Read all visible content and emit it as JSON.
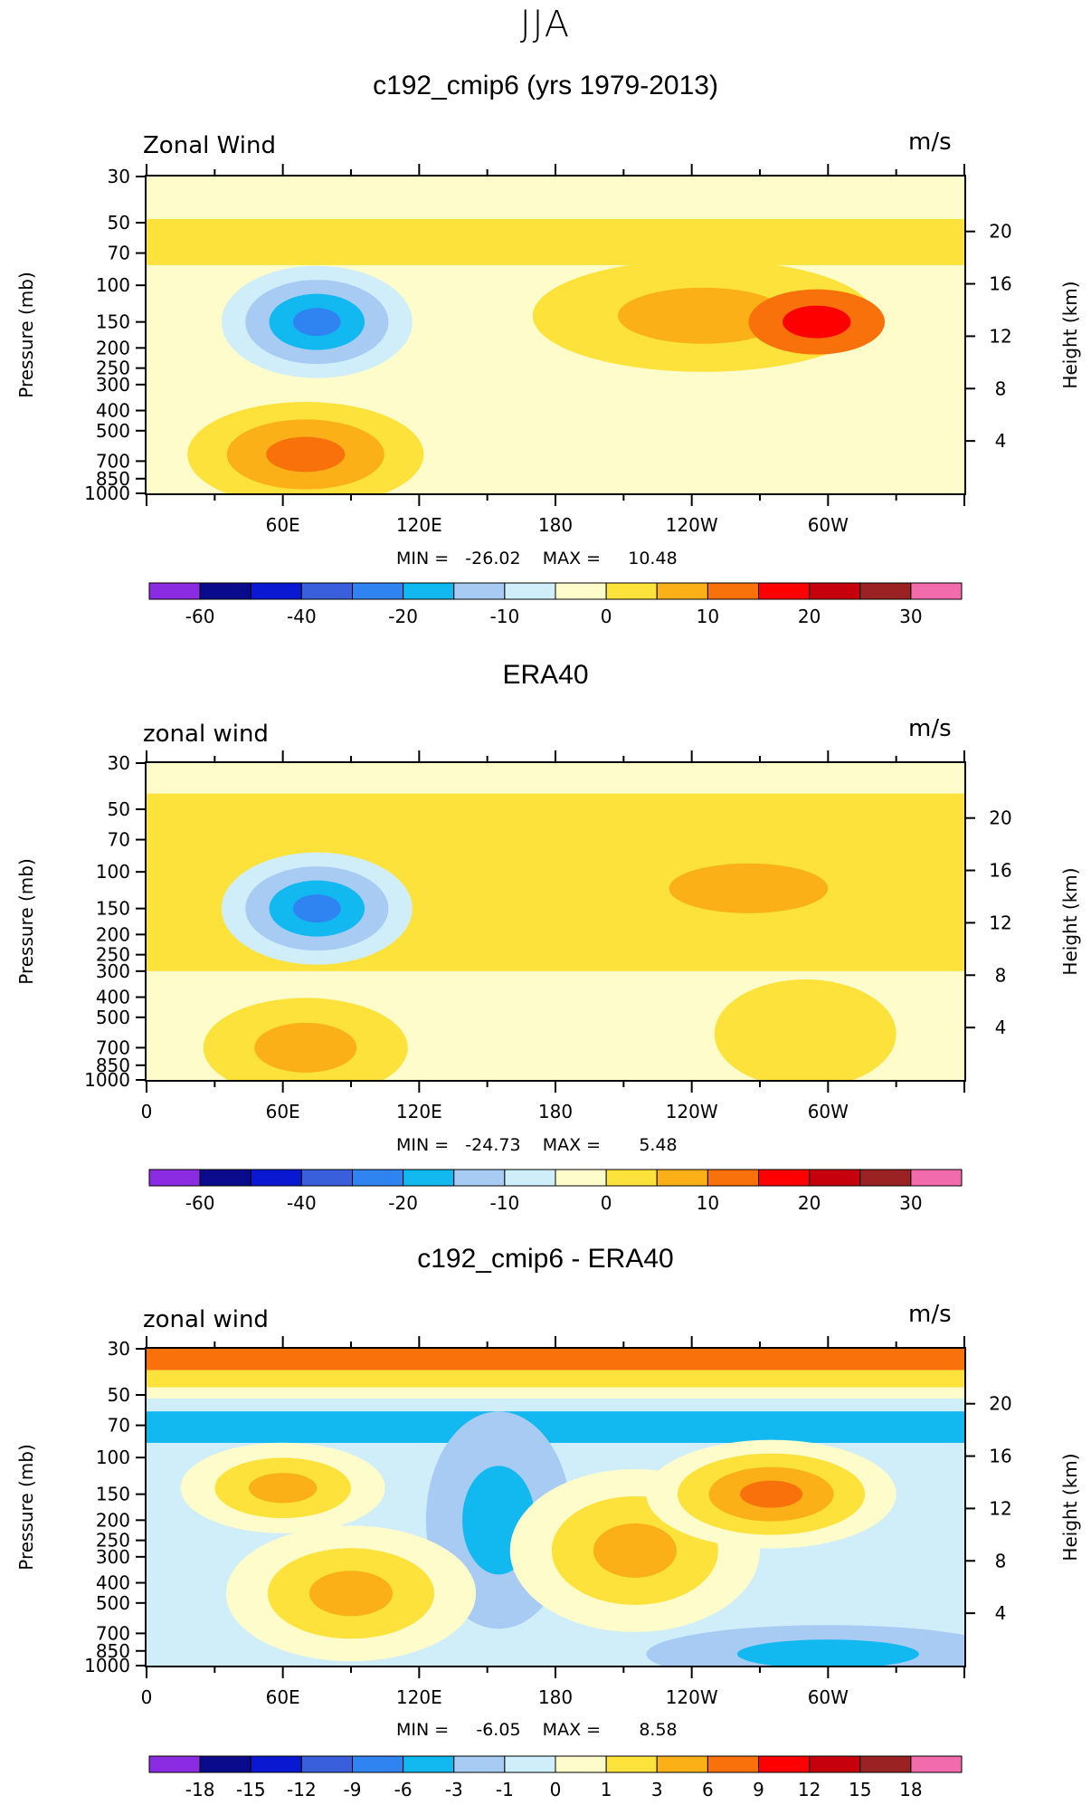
{
  "page_title": "JJA",
  "colors": {
    "palette": [
      "#8b2be2",
      "#0a0a8c",
      "#0b18d2",
      "#3a5fdc",
      "#2f84f2",
      "#12b8f0",
      "#a8cbf4",
      "#cfeefa",
      "#fffccb",
      "#fde23b",
      "#fbb018",
      "#f8710a",
      "#ff0000",
      "#c7000d",
      "#9a2222",
      "#f26bad"
    ]
  },
  "chart_data": [
    {
      "type": "heatmap",
      "title": "c192_cmip6 (yrs 1979-2013)",
      "variable_label": "Zonal Wind",
      "units": "m/s",
      "ylabel": "Pressure (mb)",
      "y2label": "Height (km)",
      "x_ticks": [
        "60E",
        "120E",
        "180",
        "120W",
        "60W"
      ],
      "x_ticks_values": [
        60,
        120,
        180,
        240,
        300
      ],
      "xlim": [
        0,
        360
      ],
      "p_ticks": [
        "30",
        "50",
        "70",
        "100",
        "150",
        "200",
        "250",
        "300",
        "400",
        "500",
        "700",
        "850",
        "1000"
      ],
      "p_values": [
        30,
        50,
        70,
        100,
        150,
        200,
        250,
        300,
        400,
        500,
        700,
        850,
        1000
      ],
      "height_ticks": [
        "20",
        "16",
        "12",
        "8",
        "4"
      ],
      "stats": "MIN =   -26.02    MAX =     10.48",
      "min": -26.02,
      "max": 10.48,
      "colorbar": {
        "levels": [
          -70,
          -60,
          -50,
          -40,
          -30,
          -20,
          -15,
          -10,
          -5,
          0,
          5,
          10,
          15,
          20,
          25,
          30,
          35
        ],
        "labels": [
          "-60",
          "-40",
          "-20",
          "-10",
          "0",
          "10",
          "20",
          "30"
        ]
      },
      "features": [
        {
          "lon": 75,
          "p": 150,
          "value": -26.02
        },
        {
          "lon": 70,
          "p": 600,
          "value": 8
        },
        {
          "lon": 300,
          "p": 150,
          "value": 10.48
        },
        {
          "lon": 230,
          "p": 150,
          "value": 4
        },
        {
          "lon": 240,
          "p": 900,
          "value": 1
        }
      ]
    },
    {
      "type": "heatmap",
      "title": "ERA40",
      "variable_label": "zonal wind",
      "units": "m/s",
      "ylabel": "Pressure (mb)",
      "y2label": "Height (km)",
      "x_ticks": [
        "0",
        "60E",
        "120E",
        "180",
        "120W",
        "60W"
      ],
      "x_ticks_values": [
        0,
        60,
        120,
        180,
        240,
        300
      ],
      "xlim": [
        0,
        360
      ],
      "p_ticks": [
        "30",
        "50",
        "70",
        "100",
        "150",
        "200",
        "250",
        "300",
        "400",
        "500",
        "700",
        "850",
        "1000"
      ],
      "p_values": [
        30,
        50,
        70,
        100,
        150,
        200,
        250,
        300,
        400,
        500,
        700,
        850,
        1000
      ],
      "height_ticks": [
        "20",
        "16",
        "12",
        "8",
        "4"
      ],
      "stats": "MIN =   -24.73    MAX =       5.48",
      "min": -24.73,
      "max": 5.48,
      "colorbar": {
        "levels": [
          -70,
          -60,
          -50,
          -40,
          -30,
          -20,
          -15,
          -10,
          -5,
          0,
          5,
          10,
          15,
          20,
          25,
          30,
          35
        ],
        "labels": [
          "-60",
          "-40",
          "-20",
          "-10",
          "0",
          "10",
          "20",
          "30"
        ]
      },
      "features": [
        {
          "lon": 75,
          "p": 150,
          "value": -24.73
        },
        {
          "lon": 70,
          "p": 700,
          "value": 4
        },
        {
          "lon": 270,
          "p": 120,
          "value": 5.48
        },
        {
          "lon": 120,
          "p": 35,
          "value": -6
        }
      ]
    },
    {
      "type": "heatmap",
      "title": "c192_cmip6 - ERA40",
      "variable_label": "zonal wind",
      "units": "m/s",
      "ylabel": "Pressure (mb)",
      "y2label": "Height (km)",
      "x_ticks": [
        "0",
        "60E",
        "120E",
        "180",
        "120W",
        "60W"
      ],
      "x_ticks_values": [
        0,
        60,
        120,
        180,
        240,
        300
      ],
      "xlim": [
        0,
        360
      ],
      "p_ticks": [
        "30",
        "50",
        "70",
        "100",
        "150",
        "200",
        "250",
        "300",
        "400",
        "500",
        "700",
        "850",
        "1000"
      ],
      "p_values": [
        30,
        50,
        70,
        100,
        150,
        200,
        250,
        300,
        400,
        500,
        700,
        850,
        1000
      ],
      "height_ticks": [
        "20",
        "16",
        "12",
        "8",
        "4"
      ],
      "stats": "MIN =     -6.05    MAX =       8.58",
      "min": -6.05,
      "max": 8.58,
      "colorbar": {
        "levels": [
          -21,
          -18,
          -15,
          -12,
          -9,
          -6,
          -3,
          -1,
          0,
          1,
          3,
          6,
          9,
          12,
          15,
          18,
          21
        ],
        "labels": [
          "-18",
          "-15",
          "-12",
          "-9",
          "-6",
          "-3",
          "-1",
          "0",
          "1",
          "3",
          "6",
          "9",
          "12",
          "15",
          "18"
        ]
      },
      "features": [
        {
          "lon": 270,
          "p": 150,
          "value": 8.58
        },
        {
          "lon": 55,
          "p": 140,
          "value": 5
        },
        {
          "lon": 90,
          "p": 450,
          "value": 4
        },
        {
          "lon": 200,
          "p": 300,
          "value": 3
        },
        {
          "lon": 150,
          "p": 200,
          "value": -6.05
        },
        {
          "lon": 180,
          "p": 70,
          "value": -4
        },
        {
          "lon": 180,
          "p": 35,
          "value": 7
        }
      ]
    }
  ]
}
